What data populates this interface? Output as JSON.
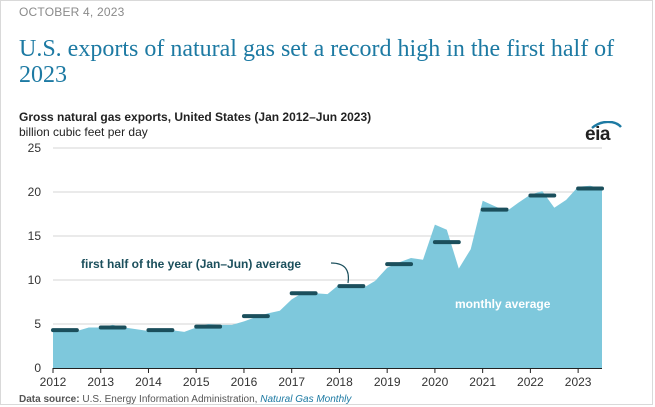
{
  "header": {
    "date": "OCTOBER 4, 2023",
    "headline": "U.S. exports of natural gas set a record high in the first half of 2023"
  },
  "logo": {
    "text": "eia",
    "icon": "eia-logo-icon"
  },
  "colors": {
    "area": "#7ec8dc",
    "avg_line": "#1b4f5c",
    "headline": "#1d7aa3",
    "annotation_text": "#1b4f5c",
    "area_label": "#ffffff"
  },
  "chart_data": {
    "type": "area",
    "title": "Gross natural gas exports, United States (Jan 2012–Jun 2023)",
    "ylabel": "billion cubic feet per day",
    "xlabel": "",
    "ylim": [
      0,
      25
    ],
    "yticks": [
      "0",
      "5",
      "10",
      "15",
      "20",
      "25"
    ],
    "xlim": [
      2012,
      2023.5
    ],
    "xticks": [
      "2012",
      "2013",
      "2014",
      "2015",
      "2016",
      "2017",
      "2018",
      "2019",
      "2020",
      "2021",
      "2022",
      "2023"
    ],
    "grid": true,
    "series": [
      {
        "name": "monthly average",
        "kind": "area",
        "points": [
          [
            2012.0,
            4.3
          ],
          [
            2012.25,
            4.1
          ],
          [
            2012.5,
            4.2
          ],
          [
            2012.75,
            4.6
          ],
          [
            2013.0,
            4.6
          ],
          [
            2013.25,
            4.9
          ],
          [
            2013.5,
            4.6
          ],
          [
            2013.75,
            4.4
          ],
          [
            2014.0,
            4.2
          ],
          [
            2014.25,
            4.3
          ],
          [
            2014.5,
            4.3
          ],
          [
            2014.75,
            4.1
          ],
          [
            2015.0,
            4.6
          ],
          [
            2015.25,
            5.0
          ],
          [
            2015.5,
            4.9
          ],
          [
            2015.75,
            4.9
          ],
          [
            2016.0,
            5.3
          ],
          [
            2016.25,
            5.8
          ],
          [
            2016.5,
            6.2
          ],
          [
            2016.75,
            6.5
          ],
          [
            2017.0,
            7.8
          ],
          [
            2017.25,
            8.6
          ],
          [
            2017.5,
            8.5
          ],
          [
            2017.75,
            8.4
          ],
          [
            2018.0,
            9.5
          ],
          [
            2018.25,
            9.4
          ],
          [
            2018.5,
            9.1
          ],
          [
            2018.75,
            9.9
          ],
          [
            2019.0,
            11.4
          ],
          [
            2019.25,
            12.0
          ],
          [
            2019.5,
            12.5
          ],
          [
            2019.75,
            12.3
          ],
          [
            2020.0,
            16.3
          ],
          [
            2020.25,
            15.7
          ],
          [
            2020.5,
            11.3
          ],
          [
            2020.75,
            13.5
          ],
          [
            2021.0,
            19.0
          ],
          [
            2021.25,
            18.4
          ],
          [
            2021.5,
            17.8
          ],
          [
            2021.75,
            18.8
          ],
          [
            2022.0,
            19.7
          ],
          [
            2022.25,
            20.1
          ],
          [
            2022.5,
            18.2
          ],
          [
            2022.75,
            19.1
          ],
          [
            2023.0,
            20.6
          ],
          [
            2023.25,
            20.7
          ],
          [
            2023.5,
            20.4
          ]
        ]
      },
      {
        "name": "first half of the year (Jan–Jun) average",
        "kind": "segments",
        "values": [
          {
            "year": 2012,
            "value": 4.3
          },
          {
            "year": 2013,
            "value": 4.6
          },
          {
            "year": 2014,
            "value": 4.3
          },
          {
            "year": 2015,
            "value": 4.7
          },
          {
            "year": 2016,
            "value": 5.9
          },
          {
            "year": 2017,
            "value": 8.5
          },
          {
            "year": 2018,
            "value": 9.3
          },
          {
            "year": 2019,
            "value": 11.8
          },
          {
            "year": 2020,
            "value": 14.3
          },
          {
            "year": 2021,
            "value": 18.0
          },
          {
            "year": 2022,
            "value": 19.6
          },
          {
            "year": 2023,
            "value": 20.4
          }
        ]
      }
    ],
    "annotations": {
      "half_year_label": "first half of the year (Jan–Jun) average",
      "area_label": "monthly average"
    }
  },
  "footer": {
    "source_prefix": "Data source:",
    "source_agency": "U.S. Energy Information Administration,",
    "source_publication": "Natural Gas Monthly"
  }
}
